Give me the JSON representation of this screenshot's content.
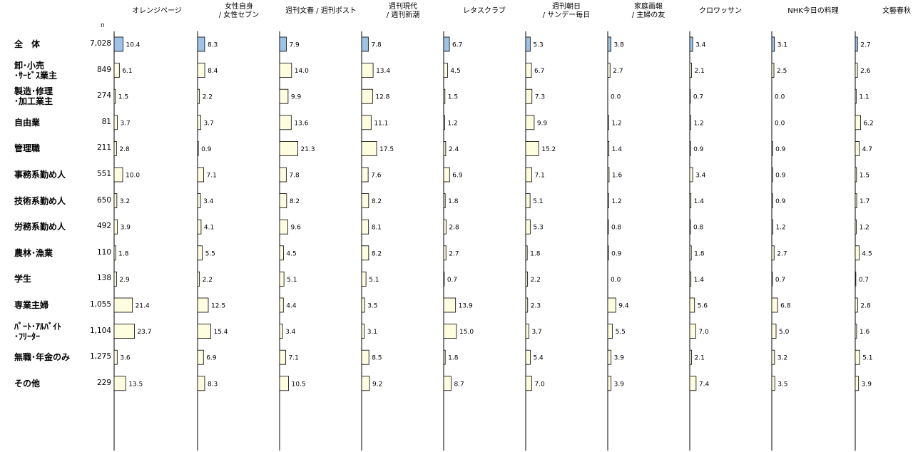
{
  "chart_data": {
    "type": "bar",
    "orientation": "horizontal",
    "n_label": "n",
    "series": [
      {
        "name": "オレンジページ",
        "values": [
          10.4,
          6.1,
          1.5,
          3.7,
          2.8,
          10.0,
          3.2,
          3.9,
          1.8,
          2.9,
          21.4,
          23.7,
          3.6,
          13.5
        ]
      },
      {
        "name": "女性自身\n/ 女性セブン",
        "values": [
          8.3,
          8.4,
          2.2,
          3.7,
          0.9,
          7.1,
          3.4,
          4.1,
          5.5,
          2.2,
          12.5,
          15.4,
          6.9,
          8.3
        ]
      },
      {
        "name": "週刊文春 / 週刊ポスト",
        "values": [
          7.9,
          14.0,
          9.9,
          13.6,
          21.3,
          7.8,
          8.2,
          9.6,
          4.5,
          5.1,
          4.4,
          3.4,
          7.1,
          10.5
        ]
      },
      {
        "name": "週刊現代\n/ 週刊新潮",
        "values": [
          7.8,
          13.4,
          12.8,
          11.1,
          17.5,
          7.6,
          8.2,
          8.1,
          8.2,
          5.1,
          3.5,
          3.1,
          8.5,
          9.2
        ]
      },
      {
        "name": "レタスクラブ",
        "values": [
          6.7,
          4.5,
          1.5,
          1.2,
          2.4,
          6.9,
          1.8,
          2.8,
          2.7,
          0.7,
          13.9,
          15.0,
          1.8,
          8.7
        ]
      },
      {
        "name": "週刊朝日\n/ サンデー毎日",
        "values": [
          5.3,
          6.7,
          7.3,
          9.9,
          15.2,
          7.1,
          5.1,
          5.3,
          1.8,
          2.2,
          2.3,
          3.7,
          5.4,
          7.0
        ]
      },
      {
        "name": "家庭画報\n/ 主婦の友",
        "values": [
          3.8,
          2.7,
          0.0,
          1.2,
          1.4,
          1.6,
          1.2,
          0.8,
          0.9,
          0.0,
          9.4,
          5.5,
          3.9,
          3.9
        ]
      },
      {
        "name": "クロワッサン",
        "values": [
          3.4,
          2.1,
          0.7,
          1.2,
          0.9,
          3.4,
          1.4,
          0.8,
          1.8,
          1.4,
          5.6,
          7.0,
          2.1,
          7.4
        ]
      },
      {
        "name": "NHK今日の料理",
        "values": [
          3.1,
          2.5,
          0.0,
          0.0,
          0.9,
          0.9,
          0.9,
          1.2,
          2.7,
          0.7,
          6.8,
          5.0,
          3.2,
          3.5
        ]
      },
      {
        "name": "文藝春秋",
        "values": [
          2.7,
          2.6,
          1.1,
          6.2,
          4.7,
          1.5,
          1.7,
          1.2,
          4.5,
          0.7,
          2.8,
          1.6,
          5.1,
          3.9
        ]
      }
    ],
    "categories": [
      {
        "label": "全　体",
        "n": "7,028"
      },
      {
        "label": "卸･小売\n･ｻｰﾋﾞｽ業主",
        "n": "849"
      },
      {
        "label": "製造･修理\n･加工業主",
        "n": "274"
      },
      {
        "label": "自由業",
        "n": "81"
      },
      {
        "label": "管理職",
        "n": "211"
      },
      {
        "label": "事務系勤め人",
        "n": "551"
      },
      {
        "label": "技術系勤め人",
        "n": "650"
      },
      {
        "label": "労務系勤め人",
        "n": "492"
      },
      {
        "label": "農林･漁業",
        "n": "110"
      },
      {
        "label": "学生",
        "n": "138"
      },
      {
        "label": "専業主婦",
        "n": "1,055"
      },
      {
        "label": "ﾊﾟｰﾄ･ｱﾙﾊﾞｲﾄ\n･ﾌﾘｰﾀｰ",
        "n": "1,104"
      },
      {
        "label": "無職･年金のみ",
        "n": "1,275"
      },
      {
        "label": "その他",
        "n": "229"
      }
    ],
    "colors": {
      "total_bar": "#9dc3e6",
      "bar": "#fffde0",
      "bar_stroke": "#000000",
      "axis": "#000000"
    },
    "xlim": [
      0,
      25
    ],
    "grid": false,
    "legend": "none"
  }
}
